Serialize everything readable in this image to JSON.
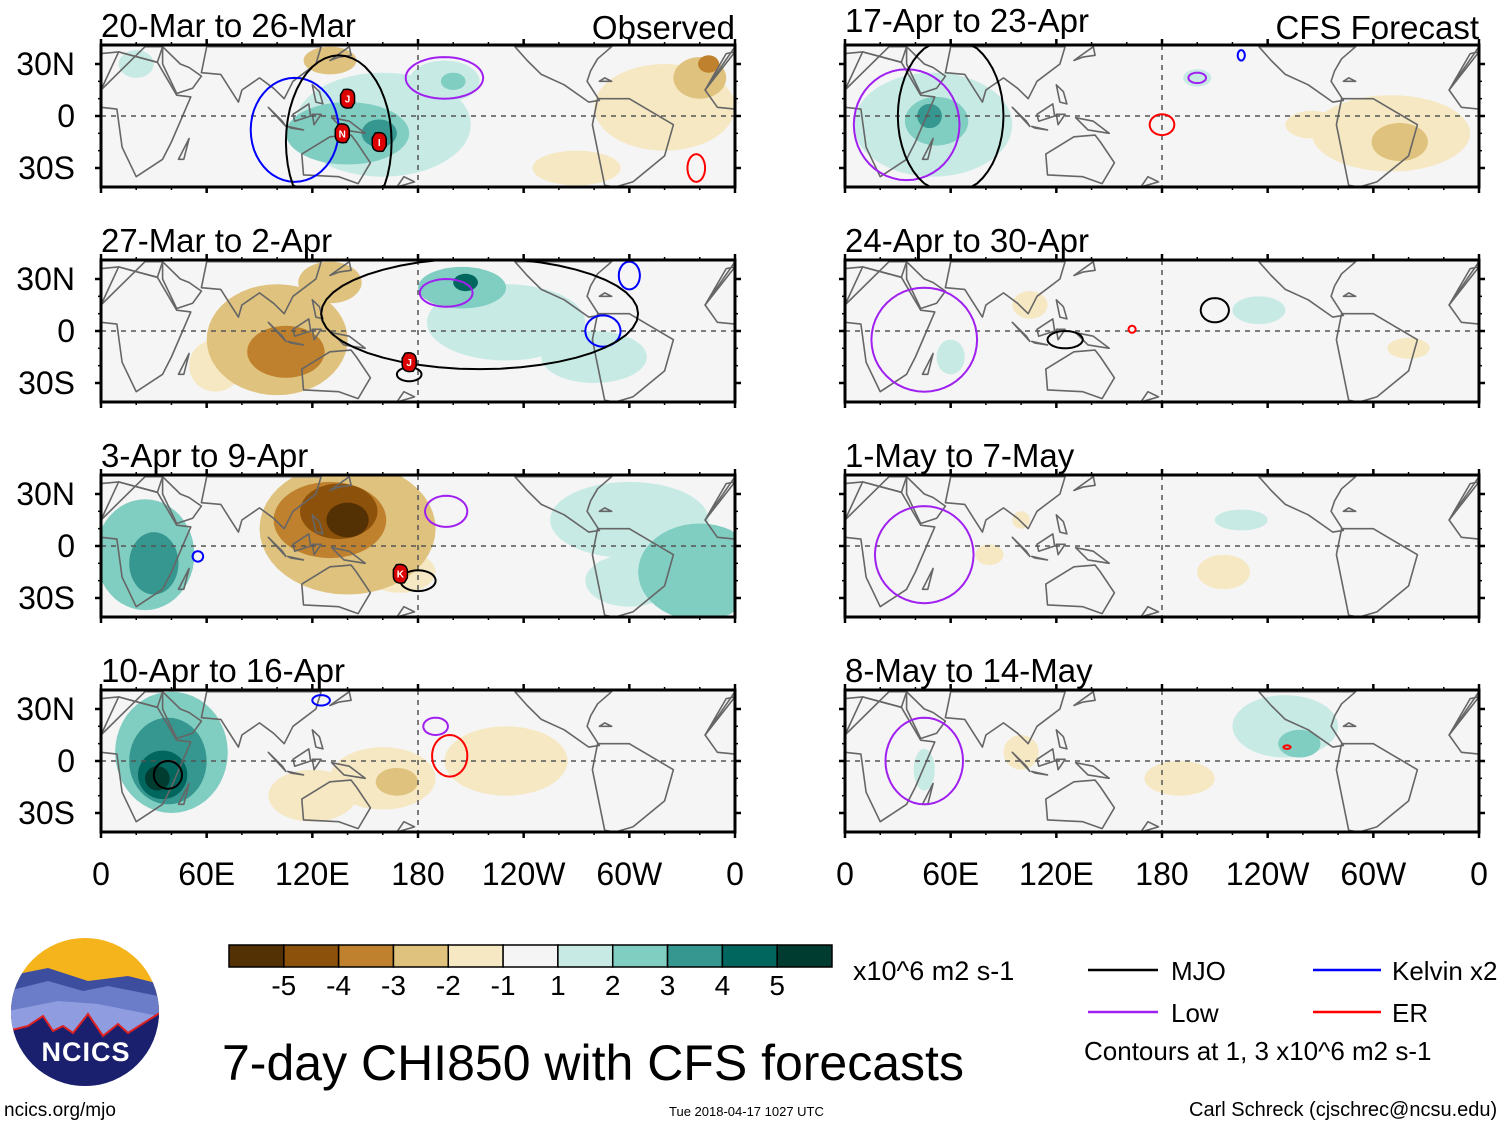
{
  "chart_data": [
    {
      "type": "heatmap",
      "column": "Observed",
      "title": "20-Mar to 26-Mar",
      "corner_label": "Observed",
      "shading": [
        {
          "lon": 160,
          "lat": -5,
          "rlon": 50,
          "rlat": 30,
          "value": 1.5
        },
        {
          "lon": 140,
          "lat": -10,
          "rlon": 35,
          "rlat": 18,
          "value": 2.5
        },
        {
          "lon": 158,
          "lat": -10,
          "rlon": 10,
          "rlat": 8,
          "value": 3.5
        },
        {
          "lon": 195,
          "lat": 20,
          "rlon": 20,
          "rlat": 12,
          "value": 1.5
        },
        {
          "lon": 200,
          "lat": 20,
          "rlon": 7,
          "rlat": 5,
          "value": 2.5
        },
        {
          "lon": 20,
          "lat": 30,
          "rlon": 10,
          "rlat": 8,
          "value": 1.5
        },
        {
          "lon": 320,
          "lat": 5,
          "rlon": 40,
          "rlat": 25,
          "value": -1.5
        },
        {
          "lon": 340,
          "lat": 22,
          "rlon": 15,
          "rlat": 12,
          "value": -2.5
        },
        {
          "lon": 345,
          "lat": 30,
          "rlon": 6,
          "rlat": 5,
          "value": -3.5
        },
        {
          "lon": 270,
          "lat": -30,
          "rlon": 25,
          "rlat": 10,
          "value": -1.5
        },
        {
          "lon": 130,
          "lat": 32,
          "rlon": 15,
          "rlat": 8,
          "value": -2.5
        }
      ],
      "contours": [
        {
          "kind": "Kelvin",
          "lon": 110,
          "lat": -8,
          "rlon": 25,
          "rlat": 30
        },
        {
          "kind": "Low",
          "lon": 195,
          "lat": 22,
          "rlon": 22,
          "rlat": 12
        },
        {
          "kind": "ER",
          "lon": 338,
          "lat": -30,
          "rlon": 5,
          "rlat": 8
        },
        {
          "kind": "MJO",
          "lon": 135,
          "lat": -15,
          "rlon": 30,
          "rlat": 50
        }
      ],
      "cyclones": [
        {
          "name": "J",
          "lon": 140,
          "lat": 10
        },
        {
          "name": "N",
          "lon": 137,
          "lat": -10
        },
        {
          "name": "I",
          "lon": 158,
          "lat": -15
        }
      ]
    },
    {
      "type": "heatmap",
      "column": "Observed",
      "title": "27-Mar to 2-Apr",
      "shading": [
        {
          "lon": 100,
          "lat": -5,
          "rlon": 40,
          "rlat": 32,
          "value": -2.5
        },
        {
          "lon": 105,
          "lat": -12,
          "rlon": 22,
          "rlat": 15,
          "value": -3.5
        },
        {
          "lon": 65,
          "lat": -20,
          "rlon": 15,
          "rlat": 15,
          "value": -1.5
        },
        {
          "lon": 130,
          "lat": 28,
          "rlon": 18,
          "rlat": 12,
          "value": -2.5
        },
        {
          "lon": 230,
          "lat": 5,
          "rlon": 45,
          "rlat": 22,
          "value": 1.5
        },
        {
          "lon": 205,
          "lat": 25,
          "rlon": 25,
          "rlat": 12,
          "value": 2.5
        },
        {
          "lon": 207,
          "lat": 28,
          "rlon": 7,
          "rlat": 5,
          "value": 4.5
        },
        {
          "lon": 280,
          "lat": -15,
          "rlon": 30,
          "rlat": 15,
          "value": 1.5
        }
      ],
      "contours": [
        {
          "kind": "Low",
          "lon": 196,
          "lat": 22,
          "rlon": 15,
          "rlat": 8
        },
        {
          "kind": "Kelvin",
          "lon": 285,
          "lat": 0,
          "rlon": 10,
          "rlat": 9
        },
        {
          "kind": "Kelvin",
          "lon": 300,
          "lat": 32,
          "rlon": 6,
          "rlat": 8
        },
        {
          "kind": "MJO",
          "lon": 175,
          "lat": -25,
          "rlon": 7,
          "rlat": 4
        },
        {
          "kind": "MJO",
          "lon": 215,
          "lat": 10,
          "rlon": 90,
          "rlat": 32
        }
      ],
      "cyclones": [
        {
          "name": "J",
          "lon": 175,
          "lat": -18
        }
      ]
    },
    {
      "type": "heatmap",
      "column": "Observed",
      "title": "3-Apr to 9-Apr",
      "shading": [
        {
          "lon": 140,
          "lat": 10,
          "rlon": 50,
          "rlat": 38,
          "value": -2.5
        },
        {
          "lon": 130,
          "lat": 15,
          "rlon": 32,
          "rlat": 22,
          "value": -3.5
        },
        {
          "lon": 135,
          "lat": 20,
          "rlon": 22,
          "rlat": 16,
          "value": -4.5
        },
        {
          "lon": 140,
          "lat": 15,
          "rlon": 12,
          "rlat": 10,
          "value": -5.5
        },
        {
          "lon": 170,
          "lat": -15,
          "rlon": 20,
          "rlat": 12,
          "value": -1.5
        },
        {
          "lon": 25,
          "lat": -5,
          "rlon": 28,
          "rlat": 32,
          "value": 2.5
        },
        {
          "lon": 30,
          "lat": -10,
          "rlon": 14,
          "rlat": 18,
          "value": 3.5
        },
        {
          "lon": 340,
          "lat": -15,
          "rlon": 35,
          "rlat": 28,
          "value": 2.5
        },
        {
          "lon": 300,
          "lat": 15,
          "rlon": 45,
          "rlat": 22,
          "value": 1.5
        },
        {
          "lon": 300,
          "lat": -20,
          "rlon": 25,
          "rlat": 15,
          "value": 1.5
        }
      ],
      "contours": [
        {
          "kind": "Low",
          "lon": 196,
          "lat": 20,
          "rlon": 12,
          "rlat": 9
        },
        {
          "kind": "MJO",
          "lon": 180,
          "lat": -20,
          "rlon": 10,
          "rlat": 6
        },
        {
          "kind": "Kelvin",
          "lon": 55,
          "lat": -6,
          "rlon": 3,
          "rlat": 3
        }
      ],
      "cyclones": [
        {
          "name": "K",
          "lon": 170,
          "lat": -16
        }
      ]
    },
    {
      "type": "heatmap",
      "column": "Observed",
      "title": "10-Apr to 16-Apr",
      "shading": [
        {
          "lon": 40,
          "lat": 5,
          "rlon": 32,
          "rlat": 35,
          "value": 2.5
        },
        {
          "lon": 38,
          "lat": 0,
          "rlon": 22,
          "rlat": 25,
          "value": 3.5
        },
        {
          "lon": 35,
          "lat": -8,
          "rlon": 14,
          "rlat": 14,
          "value": 4.5
        },
        {
          "lon": 32,
          "lat": -10,
          "rlon": 7,
          "rlat": 7,
          "value": 5.5
        },
        {
          "lon": 160,
          "lat": -10,
          "rlon": 30,
          "rlat": 18,
          "value": -1.5
        },
        {
          "lon": 168,
          "lat": -12,
          "rlon": 12,
          "rlat": 8,
          "value": -2.5
        },
        {
          "lon": 230,
          "lat": 0,
          "rlon": 35,
          "rlat": 20,
          "value": -1.5
        },
        {
          "lon": 120,
          "lat": -20,
          "rlon": 25,
          "rlat": 15,
          "value": -1.5
        }
      ],
      "contours": [
        {
          "kind": "ER",
          "lon": 198,
          "lat": 3,
          "rlon": 10,
          "rlat": 12
        },
        {
          "kind": "Low",
          "lon": 190,
          "lat": 20,
          "rlon": 7,
          "rlat": 5
        },
        {
          "kind": "Kelvin",
          "lon": 125,
          "lat": 35,
          "rlon": 5,
          "rlat": 3
        },
        {
          "kind": "MJO",
          "lon": 38,
          "lat": -8,
          "rlon": 8,
          "rlat": 8
        }
      ],
      "cyclones": []
    },
    {
      "type": "heatmap",
      "column": "CFS Forecast",
      "title": "17-Apr to 23-Apr",
      "corner_label": "CFS Forecast",
      "shading": [
        {
          "lon": 50,
          "lat": -5,
          "rlon": 45,
          "rlat": 30,
          "value": 1.5
        },
        {
          "lon": 52,
          "lat": -3,
          "rlon": 18,
          "rlat": 14,
          "value": 2.5
        },
        {
          "lon": 48,
          "lat": 0,
          "rlon": 7,
          "rlat": 7,
          "value": 3.5
        },
        {
          "lon": 200,
          "lat": 22,
          "rlon": 8,
          "rlat": 5,
          "value": 1.5
        },
        {
          "lon": 310,
          "lat": -10,
          "rlon": 45,
          "rlat": 22,
          "value": -1.5
        },
        {
          "lon": 315,
          "lat": -15,
          "rlon": 16,
          "rlat": 11,
          "value": -2.5
        },
        {
          "lon": 265,
          "lat": -5,
          "rlon": 15,
          "rlat": 8,
          "value": -1.5
        }
      ],
      "contours": [
        {
          "kind": "Low",
          "lon": 35,
          "lat": -5,
          "rlon": 30,
          "rlat": 32
        },
        {
          "kind": "ER",
          "lon": 180,
          "lat": -5,
          "rlon": 7,
          "rlat": 6
        },
        {
          "kind": "Low",
          "lon": 200,
          "lat": 22,
          "rlon": 5,
          "rlat": 3
        },
        {
          "kind": "Kelvin",
          "lon": 225,
          "lat": 35,
          "rlon": 2,
          "rlat": 3
        },
        {
          "kind": "MJO",
          "lon": 60,
          "lat": 0,
          "rlon": 30,
          "rlat": 45
        }
      ],
      "cyclones": []
    },
    {
      "type": "heatmap",
      "column": "CFS Forecast",
      "title": "24-Apr to 30-Apr",
      "shading": [
        {
          "lon": 235,
          "lat": 12,
          "rlon": 15,
          "rlat": 8,
          "value": 1.5
        },
        {
          "lon": 105,
          "lat": 15,
          "rlon": 10,
          "rlat": 8,
          "value": -1.5
        },
        {
          "lon": 320,
          "lat": -10,
          "rlon": 12,
          "rlat": 6,
          "value": -1.5
        },
        {
          "lon": 60,
          "lat": -15,
          "rlon": 8,
          "rlat": 10,
          "value": 1.5
        }
      ],
      "contours": [
        {
          "kind": "Low",
          "lon": 45,
          "lat": -5,
          "rlon": 30,
          "rlat": 30
        },
        {
          "kind": "MJO",
          "lon": 210,
          "lat": 12,
          "rlon": 8,
          "rlat": 7
        },
        {
          "kind": "MJO",
          "lon": 125,
          "lat": -5,
          "rlon": 10,
          "rlat": 5
        },
        {
          "kind": "ER",
          "lon": 163,
          "lat": 1,
          "rlon": 2,
          "rlat": 2
        }
      ],
      "cyclones": []
    },
    {
      "type": "heatmap",
      "column": "CFS Forecast",
      "title": "1-May to 7-May",
      "shading": [
        {
          "lon": 225,
          "lat": 15,
          "rlon": 15,
          "rlat": 6,
          "value": 1.5
        },
        {
          "lon": 82,
          "lat": -5,
          "rlon": 8,
          "rlat": 6,
          "value": -1.5
        },
        {
          "lon": 215,
          "lat": -15,
          "rlon": 15,
          "rlat": 10,
          "value": -1.5
        },
        {
          "lon": 100,
          "lat": 15,
          "rlon": 5,
          "rlat": 5,
          "value": -1.5
        }
      ],
      "contours": [
        {
          "kind": "Low",
          "lon": 45,
          "lat": -5,
          "rlon": 28,
          "rlat": 28
        }
      ],
      "cyclones": []
    },
    {
      "type": "heatmap",
      "column": "CFS Forecast",
      "title": "8-May to 14-May",
      "shading": [
        {
          "lon": 250,
          "lat": 20,
          "rlon": 30,
          "rlat": 18,
          "value": 1.5
        },
        {
          "lon": 258,
          "lat": 10,
          "rlon": 12,
          "rlat": 8,
          "value": 2.5
        },
        {
          "lon": 190,
          "lat": -10,
          "rlon": 20,
          "rlat": 10,
          "value": -1.5
        },
        {
          "lon": 100,
          "lat": 5,
          "rlon": 10,
          "rlat": 10,
          "value": -1.5
        },
        {
          "lon": 45,
          "lat": -5,
          "rlon": 6,
          "rlat": 12,
          "value": 1.5
        }
      ],
      "contours": [
        {
          "kind": "Low",
          "lon": 45,
          "lat": 0,
          "rlon": 22,
          "rlat": 25
        },
        {
          "kind": "ER",
          "lon": 251,
          "lat": 8,
          "rlon": 2,
          "rlat": 1
        }
      ],
      "cyclones": []
    }
  ],
  "axes": {
    "lat_ticks": [
      "30N",
      "0",
      "30S"
    ],
    "lon_ticks": [
      "0",
      "60E",
      "120E",
      "180",
      "120W",
      "60W",
      "0"
    ],
    "lat_range": [
      -40,
      40
    ],
    "lon_range": [
      0,
      360
    ]
  },
  "colorbar": {
    "bounds": [
      "-5",
      "-4",
      "-3",
      "-2",
      "-1",
      "1",
      "2",
      "3",
      "4",
      "5"
    ],
    "colors": [
      "#543005",
      "#8c510a",
      "#bf812d",
      "#dfc27d",
      "#f6e8c3",
      "#f5f5f5",
      "#c7eae5",
      "#80cdc1",
      "#35978f",
      "#01665e",
      "#003c30"
    ],
    "units": "x10^6 m2 s-1"
  },
  "legend": {
    "items": [
      {
        "label": "MJO",
        "color": "#000000"
      },
      {
        "label": "Low",
        "color": "#a020f0"
      },
      {
        "label": "Kelvin x2",
        "color": "#0000ff"
      },
      {
        "label": "ER",
        "color": "#ff0000"
      }
    ],
    "note": "Contours at 1, 3 x10^6 m2 s-1"
  },
  "title": "7-day CHI850 with CFS forecasts",
  "logo_text": "NCICS",
  "url": "ncics.org/mjo",
  "timestamp": "Tue 2018-04-17 1027 UTC",
  "credit": "Carl Schreck (cjschrec@ncsu.edu)"
}
